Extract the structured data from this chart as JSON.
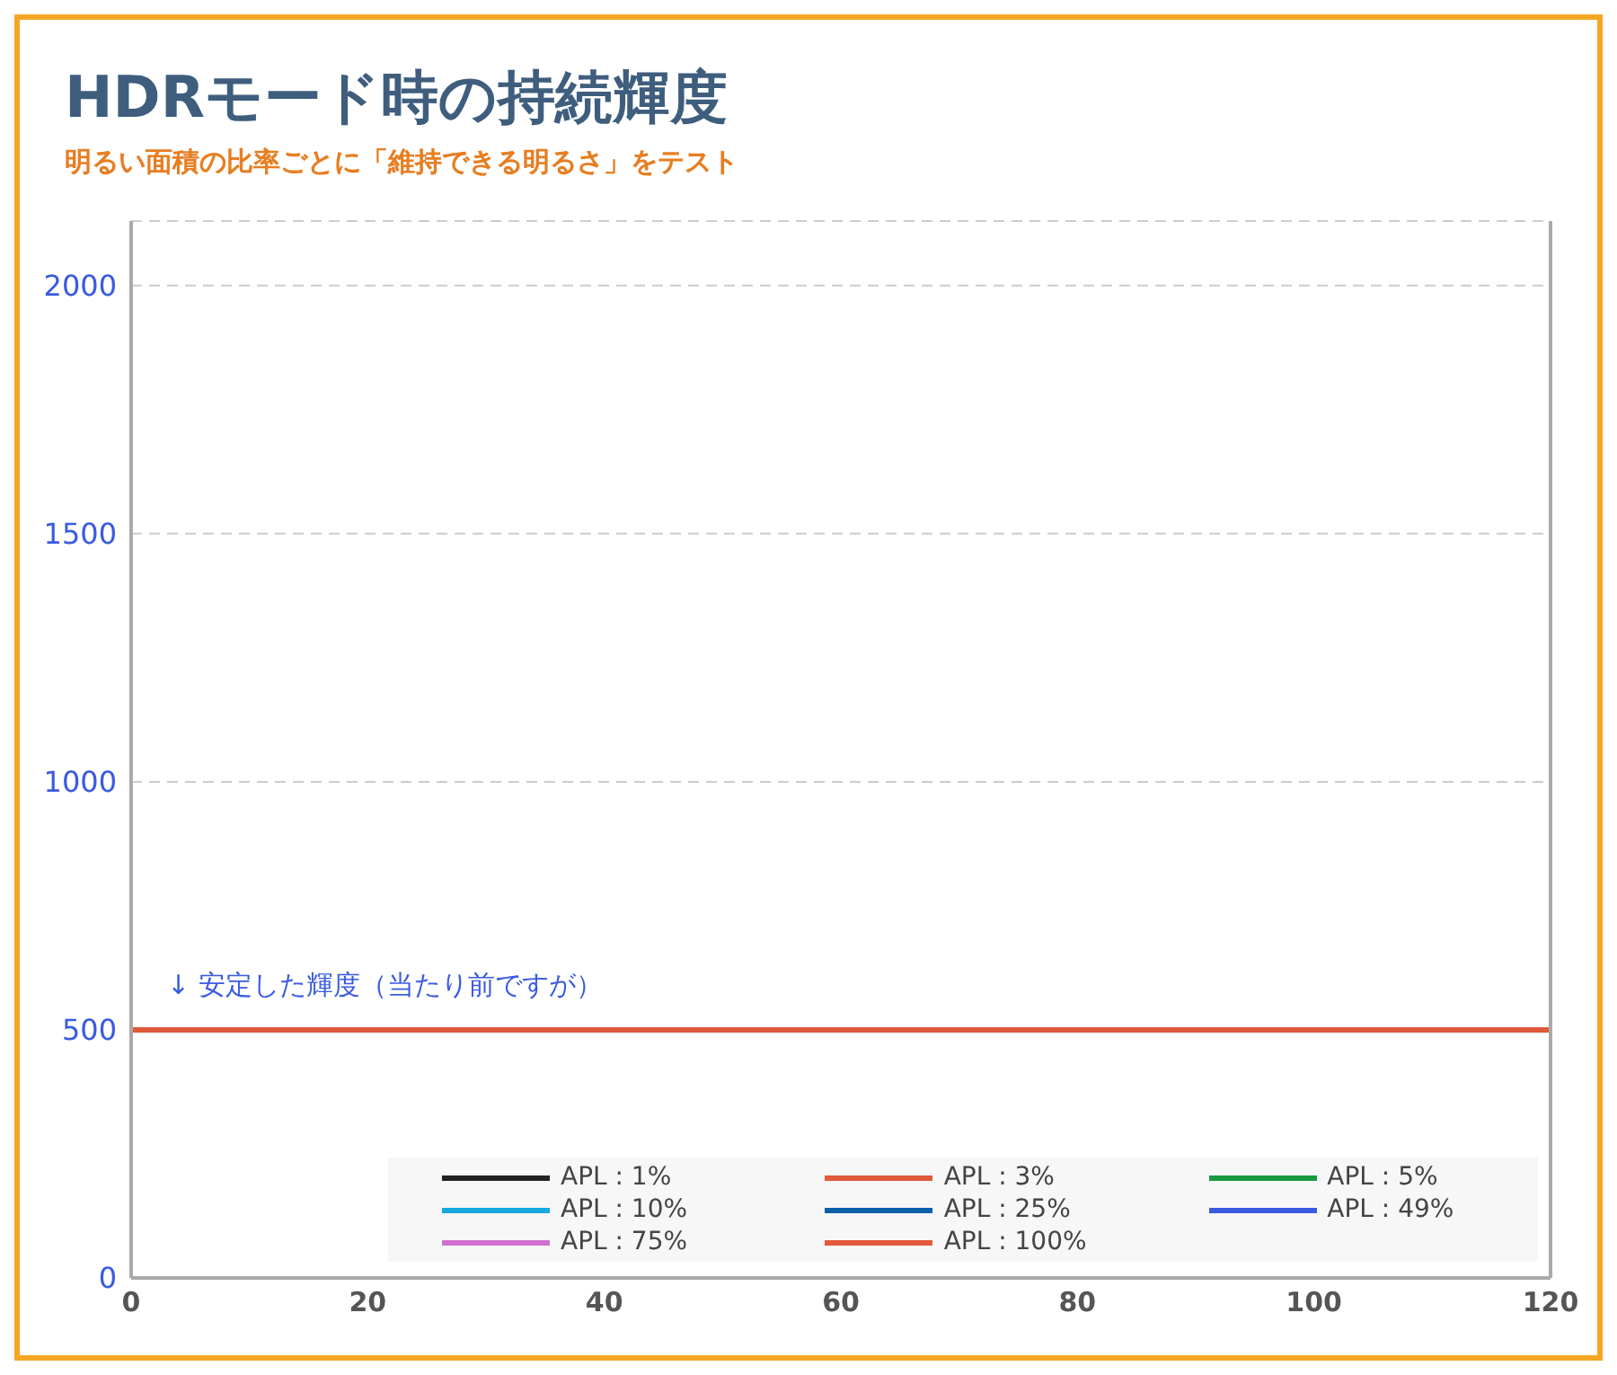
{
  "chart_data": {
    "type": "line",
    "title": "HDRモード時の持続輝度",
    "subtitle": "明るい面積の比率ごとに「維持できる明るさ」をテスト",
    "x": [
      0,
      120
    ],
    "series": [
      {
        "name": "APL : 1%",
        "color": "#222222",
        "values": [
          null,
          null
        ]
      },
      {
        "name": "APL : 3%",
        "color": "#e0593b",
        "values": [
          null,
          null
        ]
      },
      {
        "name": "APL : 5%",
        "color": "#1a9a3e",
        "values": [
          null,
          null
        ]
      },
      {
        "name": "APL : 10%",
        "color": "#18a8e0",
        "values": [
          null,
          null
        ]
      },
      {
        "name": "APL : 25%",
        "color": "#0b5fa8",
        "values": [
          null,
          null
        ]
      },
      {
        "name": "APL : 49%",
        "color": "#3a5be0",
        "values": [
          null,
          null
        ]
      },
      {
        "name": "APL : 75%",
        "color": "#cf6fcf",
        "values": [
          null,
          null
        ]
      },
      {
        "name": "APL : 100%",
        "color": "#e0593b",
        "values": [
          500,
          500
        ]
      }
    ],
    "xlim": [
      0,
      120
    ],
    "xticks": [
      0,
      20,
      40,
      60,
      80,
      100,
      120
    ],
    "ylim": [
      0,
      2130
    ],
    "yticks": [
      0,
      500,
      1000,
      1500,
      2000
    ],
    "grid": "y",
    "legend": "bottom",
    "marker": "none",
    "line_style": "solid",
    "annotations": [
      "↓ 安定した輝度（当たり前ですが）"
    ]
  }
}
